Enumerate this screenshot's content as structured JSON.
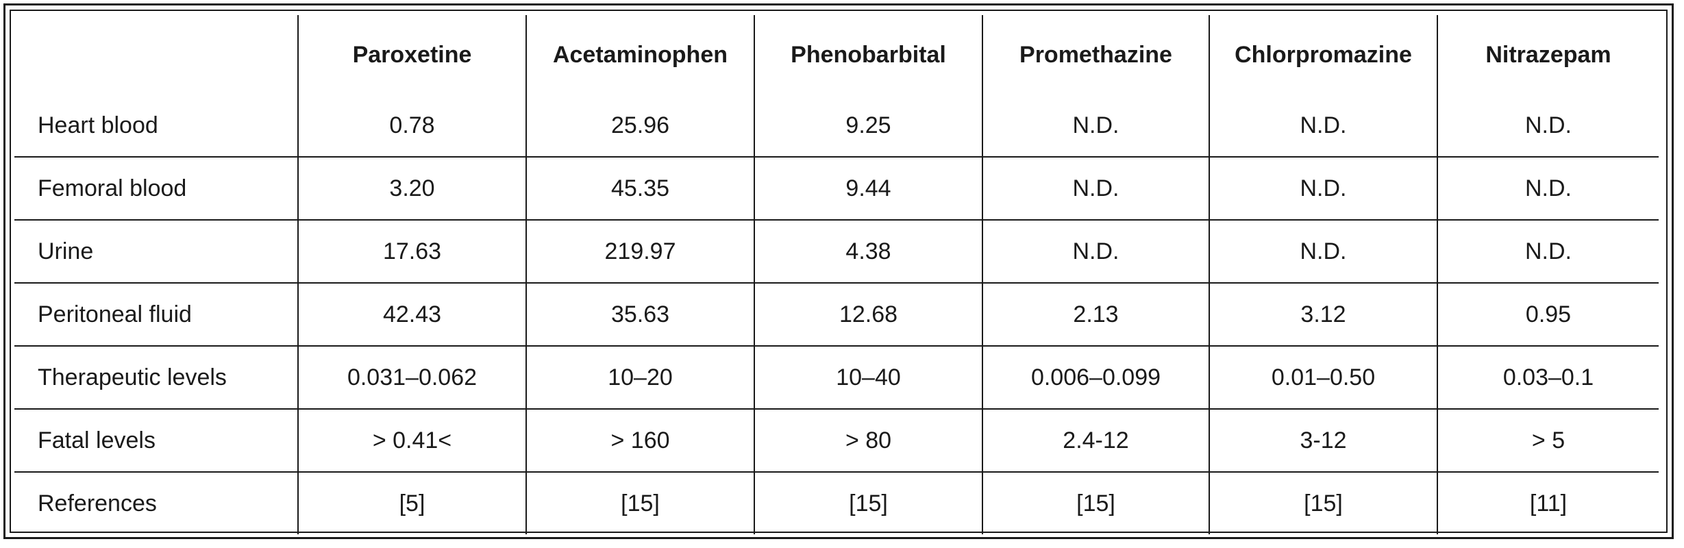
{
  "table": {
    "corner": "",
    "columns": [
      "Paroxetine",
      "Acetaminophen",
      "Phenobarbital",
      "Promethazine",
      "Chlorpromazine",
      "Nitrazepam"
    ],
    "rows": [
      {
        "label": "Heart blood",
        "cells": [
          "0.78",
          "25.96",
          "9.25",
          "N.D.",
          "N.D.",
          "N.D."
        ]
      },
      {
        "label": "Femoral blood",
        "cells": [
          "3.20",
          "45.35",
          "9.44",
          "N.D.",
          "N.D.",
          "N.D."
        ]
      },
      {
        "label": "Urine",
        "cells": [
          "17.63",
          "219.97",
          "4.38",
          "N.D.",
          "N.D.",
          "N.D."
        ]
      },
      {
        "label": "Peritoneal fluid",
        "cells": [
          "42.43",
          "35.63",
          "12.68",
          "2.13",
          "3.12",
          "0.95"
        ]
      },
      {
        "label": "Therapeutic levels",
        "cells": [
          "0.031–0.062",
          "10–20",
          "10–40",
          "0.006–0.099",
          "0.01–0.50",
          "0.03–0.1"
        ]
      },
      {
        "label": "Fatal levels",
        "cells": [
          "> 0.41<",
          "> 160",
          "> 80",
          "2.4-12",
          "3-12",
          "> 5"
        ]
      },
      {
        "label": "References",
        "cells": [
          "[5]",
          "[15]",
          "[15]",
          "[15]",
          "[15]",
          "[11]"
        ]
      }
    ]
  }
}
